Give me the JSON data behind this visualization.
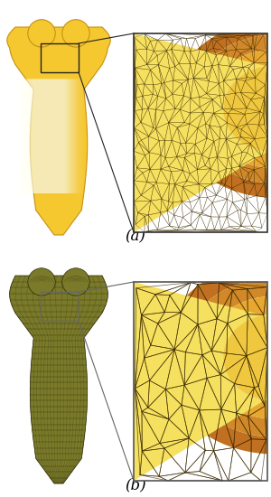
{
  "figsize": [
    3.0,
    5.5
  ],
  "dpi": 100,
  "label_a": "(a)",
  "label_b": "(b)",
  "label_fontsize": 12,
  "tooth_a_color1": "#F5C830",
  "tooth_a_color2": "#E8A820",
  "tooth_a_edge": "#C89010",
  "tooth_b_color1": "#8B8B30",
  "tooth_b_color2": "#6B6B20",
  "tooth_b_edge": "#3a3a10",
  "zoom_bg_outer": "#E8C040",
  "zoom_bg_inner": "#F5E080",
  "zoom_orange": "#D08020",
  "zoom_brown": "#A05010",
  "zoom_mesh_hi": "#5a3a00",
  "zoom_mesh_lo": "#4a3a00",
  "conn_color_a": "#222222",
  "conn_color_b": "#888888"
}
